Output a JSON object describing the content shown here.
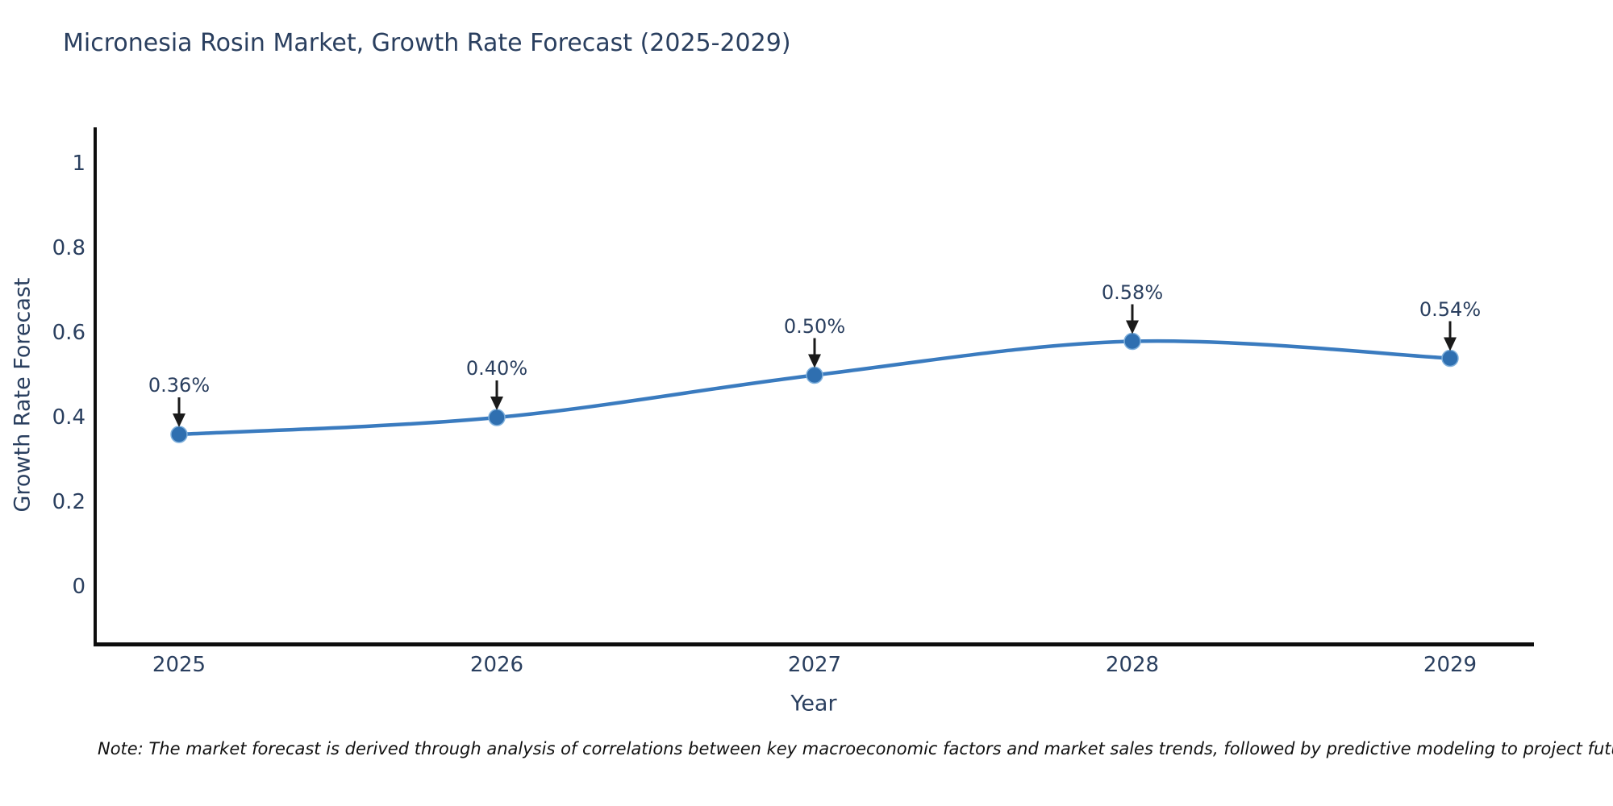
{
  "title": "Micronesia Rosin Market, Growth Rate Forecast (2025-2029)",
  "note": "Note: The market forecast is derived through analysis of correlations between key macroeconomic factors and market sales trends, followed by predictive modeling to project future sales",
  "colors": {
    "line": "#3a7bbf",
    "marker": "#2f6fb0",
    "marker_edge": "#7fb0dc",
    "axis": "#0d0d0d",
    "text": "#2a3f5f",
    "arrow": "#1a1a1a"
  },
  "chart_data": {
    "type": "line",
    "title": "Micronesia Rosin Market, Growth Rate Forecast (2025-2029)",
    "xlabel": "Year",
    "ylabel": "Growth Rate Forecast",
    "x": [
      2025,
      2026,
      2027,
      2028,
      2029
    ],
    "series": [
      {
        "name": "Growth Rate Forecast",
        "values": [
          0.36,
          0.4,
          0.5,
          0.58,
          0.54
        ],
        "point_labels": [
          "0.36%",
          "0.40%",
          "0.50%",
          "0.58%",
          "0.54%"
        ]
      }
    ],
    "xtick_labels": [
      "2025",
      "2026",
      "2027",
      "2028",
      "2029"
    ],
    "ytick_values": [
      0,
      0.2,
      0.4,
      0.6,
      0.8,
      1
    ],
    "ytick_labels": [
      "0",
      "0.2",
      "0.4",
      "0.6",
      "0.8",
      "1"
    ],
    "ylim": [
      -0.14,
      1.08
    ],
    "grid": false,
    "legend_position": "none",
    "line_shape": "spline",
    "annotations_have_arrows": true
  }
}
